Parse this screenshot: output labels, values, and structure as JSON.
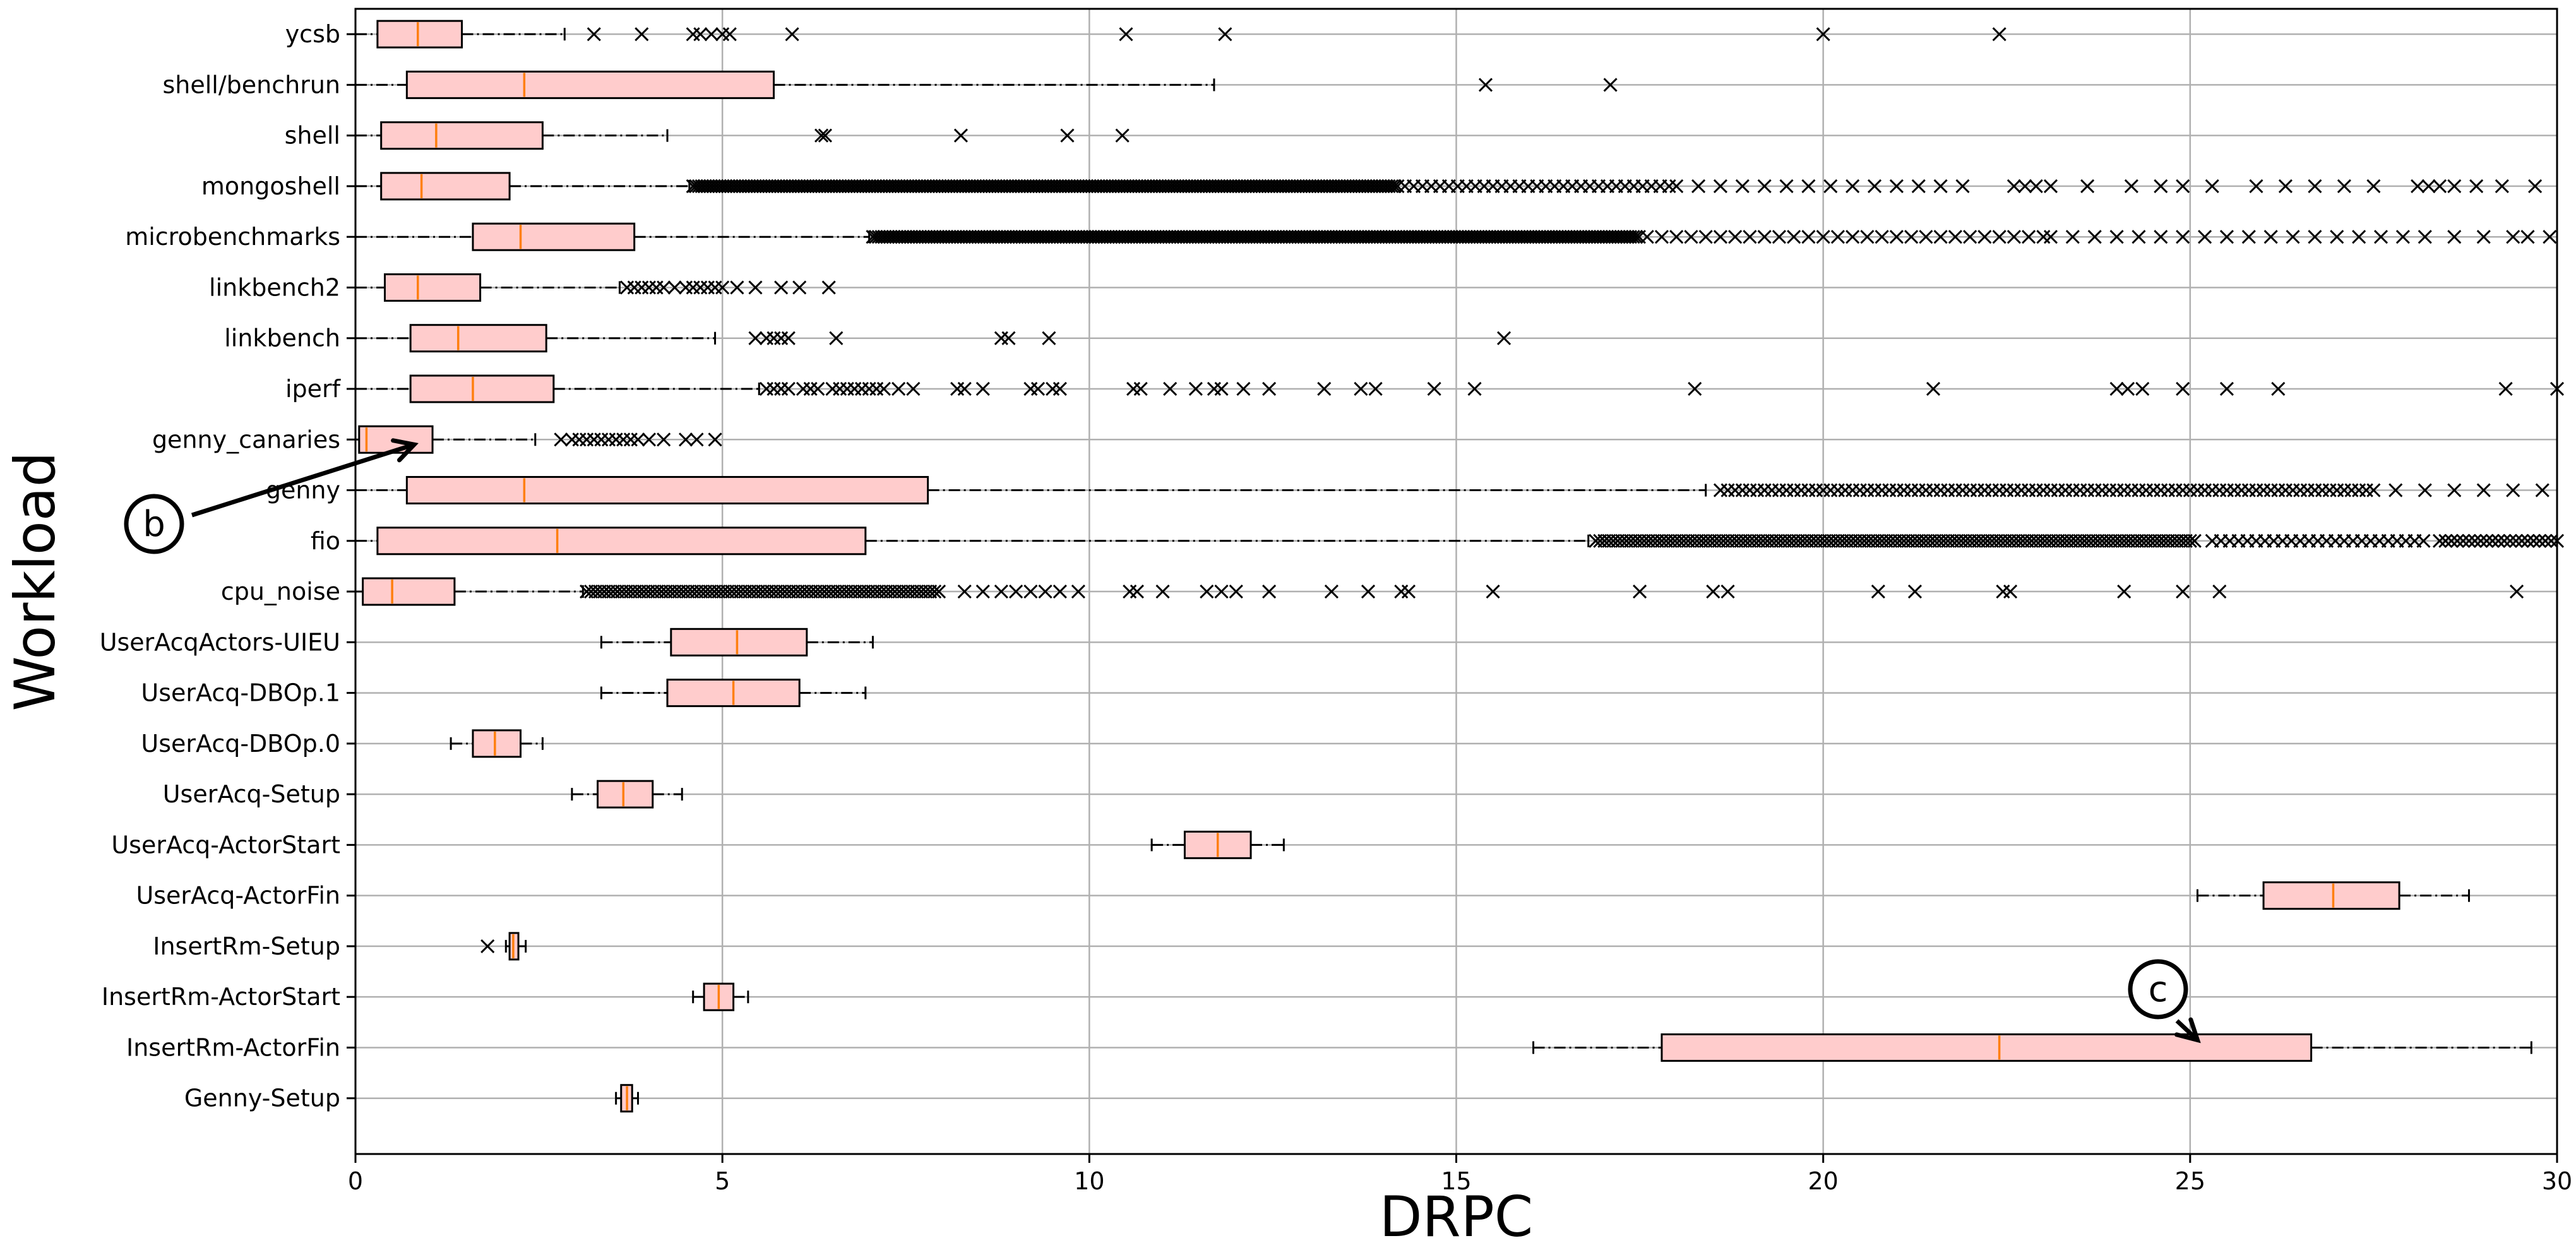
{
  "chart_data": {
    "type": "box",
    "orientation": "horizontal",
    "xlabel": "DRPC",
    "ylabel": "Workload",
    "xlim": [
      0,
      30
    ],
    "xticks": [
      0,
      5,
      10,
      15,
      20,
      25,
      30
    ],
    "grid": true,
    "box_fill": "#ffcccc",
    "median_color": "#ff7f0e",
    "outlier_marker": "x",
    "annotations": [
      {
        "label": "b",
        "target": "genny_canaries",
        "target_x": 0.8
      },
      {
        "label": "c",
        "target": "InsertRm-ActorFin",
        "target_x": 25.1
      }
    ],
    "categories": [
      "ycsb",
      "shell/benchrun",
      "shell",
      "mongoshell",
      "microbenchmarks",
      "linkbench2",
      "linkbench",
      "iperf",
      "genny_canaries",
      "genny",
      "fio",
      "cpu_noise",
      "UserAcqActors-UIEU",
      "UserAcq-DBOp.1",
      "UserAcq-DBOp.0",
      "UserAcq-Setup",
      "UserAcq-ActorStart",
      "UserAcq-ActorFin",
      "InsertRm-Setup",
      "InsertRm-ActorStart",
      "InsertRm-ActorFin",
      "Genny-Setup"
    ],
    "boxes": [
      {
        "name": "ycsb",
        "whislo": 0.0,
        "q1": 0.3,
        "med": 0.85,
        "q3": 1.45,
        "whishi": 2.85,
        "fliers": [
          3.25,
          3.9,
          4.6,
          4.7,
          4.85,
          5.0,
          5.1,
          5.95,
          10.5,
          11.85,
          20.0,
          22.4
        ]
      },
      {
        "name": "shell/benchrun",
        "whislo": 0.0,
        "q1": 0.7,
        "med": 2.3,
        "q3": 5.7,
        "whishi": 11.7,
        "fliers": [
          15.4,
          17.1
        ]
      },
      {
        "name": "shell",
        "whislo": 0.0,
        "q1": 0.35,
        "med": 1.1,
        "q3": 2.55,
        "whishi": 4.25,
        "fliers": [
          6.35,
          6.4,
          8.25,
          9.7,
          10.45
        ]
      },
      {
        "name": "mongoshell",
        "whislo": 0.0,
        "q1": 0.35,
        "med": 0.9,
        "q3": 2.1,
        "whishi": 4.55,
        "fliers": [],
        "flier_bands": [
          [
            4.6,
            14.2,
            0.04
          ],
          [
            14.3,
            17.9,
            0.12
          ],
          [
            18.0,
            22.0,
            0.3
          ]
        ],
        "fliers_sparse": [
          22.6,
          22.75,
          22.9,
          23.1,
          23.6,
          24.2,
          24.6,
          24.9,
          25.3,
          25.9,
          26.3,
          26.7,
          27.1,
          27.5,
          28.1,
          28.25,
          28.4,
          28.6,
          28.9,
          29.25,
          29.7
        ]
      },
      {
        "name": "microbenchmarks",
        "whislo": 0.0,
        "q1": 1.6,
        "med": 2.25,
        "q3": 3.8,
        "whishi": 7.0,
        "fliers": [],
        "flier_bands": [
          [
            7.05,
            17.5,
            0.04
          ],
          [
            17.6,
            23.0,
            0.2
          ],
          [
            23.1,
            28.0,
            0.3
          ]
        ],
        "fliers_sparse": [
          28.2,
          28.6,
          29.0,
          29.4,
          29.6,
          29.9
        ]
      },
      {
        "name": "linkbench2",
        "whislo": 0.0,
        "q1": 0.4,
        "med": 0.85,
        "q3": 1.7,
        "whishi": 3.6,
        "fliers": [
          3.7,
          3.8,
          3.9,
          4.0,
          4.1,
          4.2,
          4.35,
          4.5,
          4.6,
          4.7,
          4.8,
          4.9,
          5.0,
          5.2,
          5.45,
          5.8,
          6.05,
          6.45
        ]
      },
      {
        "name": "linkbench",
        "whislo": 0.0,
        "q1": 0.75,
        "med": 1.4,
        "q3": 2.6,
        "whishi": 4.9,
        "fliers": [
          5.45,
          5.6,
          5.7,
          5.8,
          5.9,
          6.55,
          8.8,
          8.9,
          9.45,
          15.65
        ]
      },
      {
        "name": "iperf",
        "whislo": 0.0,
        "q1": 0.75,
        "med": 1.6,
        "q3": 2.7,
        "whishi": 5.5,
        "fliers": [
          5.6,
          5.7,
          5.8,
          5.9,
          6.1,
          6.2,
          6.3,
          6.5,
          6.6,
          6.7,
          6.8,
          6.9,
          7.0,
          7.1,
          7.2,
          7.4,
          7.6,
          8.2,
          8.3,
          8.55,
          9.2,
          9.3,
          9.5,
          9.6,
          10.6,
          10.7,
          11.1,
          11.45,
          11.7,
          11.8,
          12.1,
          12.45,
          13.2,
          13.7,
          13.9,
          14.7,
          15.25,
          18.25,
          21.5,
          24.0,
          24.15,
          24.35,
          24.9,
          25.5,
          26.2,
          29.3,
          30.0
        ]
      },
      {
        "name": "genny_canaries",
        "whislo": 0.0,
        "q1": 0.05,
        "med": 0.15,
        "q3": 1.05,
        "whishi": 2.45,
        "fliers": [
          2.8,
          2.95,
          3.05,
          3.15,
          3.25,
          3.35,
          3.45,
          3.55,
          3.65,
          3.75,
          3.85,
          4.0,
          4.2,
          4.5,
          4.65,
          4.9
        ]
      },
      {
        "name": "genny",
        "whislo": 0.0,
        "q1": 0.7,
        "med": 2.3,
        "q3": 7.8,
        "whishi": 18.4,
        "fliers": [],
        "flier_bands": [
          [
            18.6,
            27.5,
            0.1
          ]
        ],
        "fliers_sparse": [
          27.8,
          28.2,
          28.6,
          29.0,
          29.4,
          29.8
        ]
      },
      {
        "name": "fio",
        "whislo": 0.0,
        "q1": 0.3,
        "med": 2.75,
        "q3": 6.95,
        "whishi": 16.8,
        "fliers": [],
        "flier_bands": [
          [
            16.9,
            25.1,
            0.06
          ],
          [
            25.3,
            28.2,
            0.12
          ],
          [
            28.4,
            30.0,
            0.08
          ]
        ],
        "fliers_sparse": []
      },
      {
        "name": "cpu_noise",
        "whislo": 0.0,
        "q1": 0.1,
        "med": 0.5,
        "q3": 1.35,
        "whishi": 3.1,
        "fliers": [],
        "flier_bands": [
          [
            3.15,
            8.0,
            0.06
          ]
        ],
        "fliers_sparse": [
          8.3,
          8.55,
          8.8,
          9.0,
          9.2,
          9.4,
          9.6,
          9.85,
          10.55,
          10.65,
          11.0,
          11.6,
          11.8,
          12.0,
          12.45,
          13.3,
          13.8,
          14.25,
          14.35,
          15.5,
          17.5,
          18.5,
          18.7,
          20.75,
          21.25,
          22.45,
          22.55,
          24.1,
          24.9,
          25.4,
          29.45
        ]
      },
      {
        "name": "UserAcqActors-UIEU",
        "whislo": 3.35,
        "q1": 4.3,
        "med": 5.2,
        "q3": 6.15,
        "whishi": 7.05,
        "fliers": []
      },
      {
        "name": "UserAcq-DBOp.1",
        "whislo": 3.35,
        "q1": 4.25,
        "med": 5.15,
        "q3": 6.05,
        "whishi": 6.95,
        "fliers": []
      },
      {
        "name": "UserAcq-DBOp.0",
        "whislo": 1.3,
        "q1": 1.6,
        "med": 1.9,
        "q3": 2.25,
        "whishi": 2.55,
        "fliers": []
      },
      {
        "name": "UserAcq-Setup",
        "whislo": 2.95,
        "q1": 3.3,
        "med": 3.65,
        "q3": 4.05,
        "whishi": 4.45,
        "fliers": []
      },
      {
        "name": "UserAcq-ActorStart",
        "whislo": 10.85,
        "q1": 11.3,
        "med": 11.75,
        "q3": 12.2,
        "whishi": 12.65,
        "fliers": []
      },
      {
        "name": "UserAcq-ActorFin",
        "whislo": 25.1,
        "q1": 26.0,
        "med": 26.95,
        "q3": 27.85,
        "whishi": 28.8,
        "fliers": []
      },
      {
        "name": "InsertRm-Setup",
        "whislo": 2.05,
        "q1": 2.1,
        "med": 2.15,
        "q3": 2.22,
        "whishi": 2.32,
        "fliers": [
          1.8
        ]
      },
      {
        "name": "InsertRm-ActorStart",
        "whislo": 4.6,
        "q1": 4.75,
        "med": 4.95,
        "q3": 5.15,
        "whishi": 5.35,
        "fliers": []
      },
      {
        "name": "InsertRm-ActorFin",
        "whislo": 16.05,
        "q1": 17.8,
        "med": 22.4,
        "q3": 26.65,
        "whishi": 29.65,
        "fliers": []
      },
      {
        "name": "Genny-Setup",
        "whislo": 3.55,
        "q1": 3.62,
        "med": 3.7,
        "q3": 3.77,
        "whishi": 3.85,
        "fliers": []
      }
    ]
  }
}
